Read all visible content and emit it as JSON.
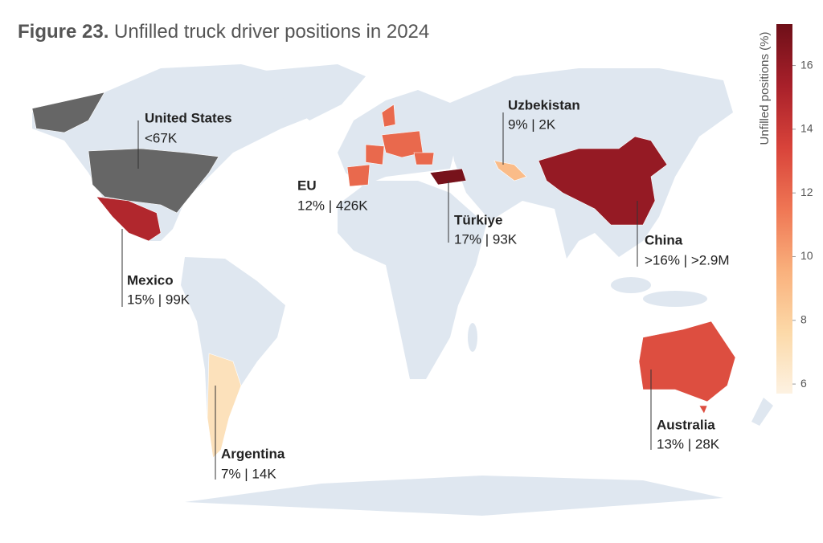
{
  "title": {
    "label": "Figure 23.",
    "text": "Unfilled truck driver positions in 2024"
  },
  "colorbar": {
    "label": "Unfilled positions (%)",
    "lim": [
      5.7,
      17.3
    ],
    "ticks": [
      6,
      8,
      10,
      12,
      14,
      16
    ],
    "colors": [
      "#fdf2e2",
      "#fcd9a8",
      "#f9b07c",
      "#ef7654",
      "#d8433a",
      "#a8202a",
      "#6e0f18"
    ]
  },
  "no_data_color": "#666666",
  "regions": [
    {
      "name": "United States",
      "label": "<67K",
      "value": null
    },
    {
      "name": "EU",
      "label": "12% | 426K",
      "value": 12
    },
    {
      "name": "Türkiye",
      "label": "17% | 93K",
      "value": 17
    },
    {
      "name": "Uzbekistan",
      "label": "9% | 2K",
      "value": 9
    },
    {
      "name": "China",
      "label": ">16% | >2.9M",
      "value": 16
    },
    {
      "name": "Mexico",
      "label": "15% | 99K",
      "value": 15
    },
    {
      "name": "Argentina",
      "label": "7% | 14K",
      "value": 7
    },
    {
      "name": "Australia",
      "label": "13% | 28K",
      "value": 13
    }
  ]
}
